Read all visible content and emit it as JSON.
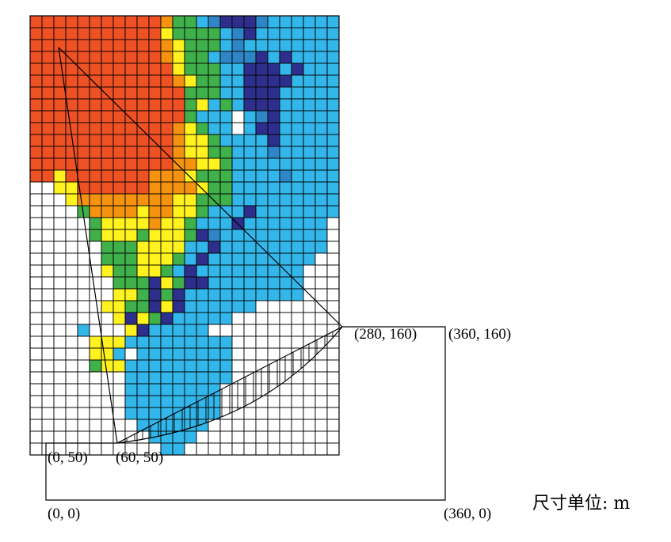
{
  "diagram": {
    "colors": {
      "empty": "#ffffff",
      "red": "#ee5124",
      "orange": "#f5920f",
      "yellow": "#fff21f",
      "green": "#3fb04a",
      "navy": "#2e2f8c",
      "sky": "#33b6ea",
      "steel": "#2f86c7",
      "grid_line": "#000000"
    },
    "color_grid": [
      "rrrrrrrrrrroggsbnnnbssssss",
      "rrrrrrrrrrryggggsbnsssssss",
      "rrrrrrrrrrroygggsbssssssss",
      "rrrrrrrrrrroyggsbbbnsnssss",
      "rrrrrrrrrrrrygggssnnnsnsss",
      "rrrrrrrrrrrroyggssnnnnssss",
      "rrrrrrrrrrrrrgggssnnnsssss",
      "rrrrrrrrrrrrrgysgsnnnsssss",
      "rrrrrrrrrrrrrgssswsbnsssss",
      "rrrrrrrrrrrroygsswsnnsssss",
      "rrrrrrrrrrrroyygssssnsssss",
      "rrrrrrrrrrrroyyggsssbsssss",
      "rrrrrrrrrrrrooyygsssssssss",
      "rryrrrrrrroooygggssssbssss",
      "wwyyrrrrrrooooyggsssssssss",
      "wwwyooooooooyygggsssssssss",
      "wwwwgooooyooyygsssnsssssss",
      "wwwwwgyyyyoyygsssnsssssss",
      "wwwwwgyyygyyygnbsssssssss",
      "wwwwwwgggyyyyssnsssssssss",
      "wwwwwwgggyyygsnsssssssss",
      "wwwwwwyggyygsnsssssssss",
      "wwwwwwwgggnygnnssssssss",
      "wwwwwwwyygngnssssssssss",
      "wwwwwwyyggnynsssssswwww",
      "wwwwwwwynygnssssswwwwwwww",
      "wwwwswwwynssssswwwwwwwwww",
      "wwwwwyyyssssssssswwwwwwww",
      "wwwwwyyswsssssssswwwwwwww",
      "wwwwwgyyssssssssswwwwwwww",
      "wwwwwwwwssssssssswwwwwwww",
      "wwwwwwwwsssssssswwwwwwwww",
      "wwwwwwwwsssssssswwwwwwwww",
      "wwwwwwwwsssssssswwwwwwwww",
      "wwwwwwwwwsssssswwwwwwwwww",
      "wwwwwwwwwwsssswwwwwwwwwww",
      "wwwwwwwwwwwsswwwwwwwwwwww"
    ],
    "labels": {
      "crest": "(280, 160)",
      "top_right": "(360, 160)",
      "left_step": "(0, 50)",
      "toe": "(60, 50)",
      "origin": "(0, 0)",
      "bottom_right": "(360, 0)",
      "unit_text": "尺寸单位: m"
    }
  }
}
